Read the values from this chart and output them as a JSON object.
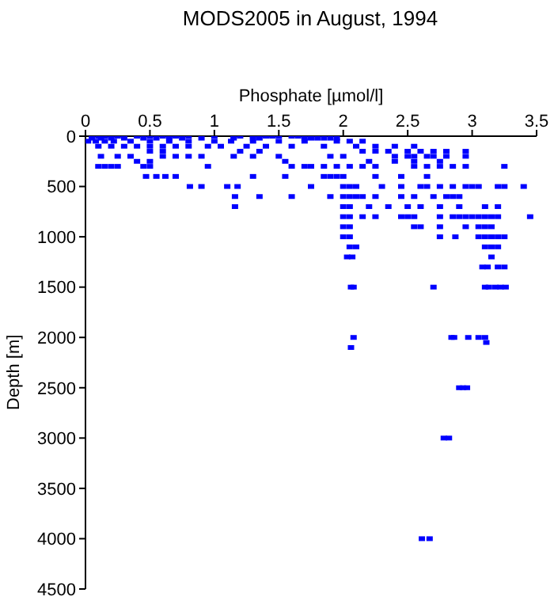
{
  "chart_data": {
    "type": "scatter",
    "title": "MODS2005 in August, 1994",
    "xlabel": "Phosphate [µmol/l]",
    "ylabel": "Depth [m]",
    "xlim": [
      0,
      3.5
    ],
    "xticks": [
      0,
      0.5,
      1,
      1.5,
      2,
      2.5,
      3,
      3.5
    ],
    "ylim": [
      4500,
      0
    ],
    "yticks": [
      0,
      500,
      1000,
      1500,
      2000,
      2500,
      3000,
      3500,
      4000,
      4500
    ],
    "marker": "square",
    "grid": false,
    "legend": false,
    "series": [
      {
        "color": "#0000ff",
        "x": [
          0.05,
          0.1,
          0.15,
          0.2,
          0.25,
          0.3,
          0.4,
          0.5,
          0.6,
          0.7,
          0.8,
          1.0,
          1.15,
          1.2,
          1.3,
          1.4,
          1.45,
          1.5,
          1.6,
          1.65,
          0.05,
          0.12,
          0.2,
          0.3,
          0.45,
          0.55,
          0.65,
          0.75,
          0.9,
          1.15,
          1.3,
          1.35,
          1.7,
          1.75,
          1.8,
          1.85,
          1.9,
          1.95,
          0.02,
          0.08,
          0.15,
          0.22,
          0.35,
          0.5,
          0.65,
          0.8,
          1.0,
          1.13,
          1.3,
          1.5,
          1.7,
          1.95,
          2.05,
          2.15,
          0.1,
          0.2,
          0.3,
          0.4,
          0.5,
          0.6,
          0.7,
          0.8,
          0.95,
          1.05,
          1.25,
          1.4,
          1.6,
          1.85,
          2.1,
          2.25,
          2.4,
          2.55,
          0.5,
          0.6,
          1.2,
          1.35,
          2.15,
          2.25,
          2.35,
          2.5,
          2.6,
          2.7,
          2.8,
          2.95,
          0.12,
          0.25,
          0.35,
          0.6,
          0.7,
          0.8,
          0.9,
          1.15,
          1.3,
          1.5,
          1.9,
          2.0,
          2.4,
          2.5,
          2.55,
          2.65,
          2.7,
          2.8,
          2.95,
          0.4,
          0.5,
          1.55,
          2.2,
          2.4,
          2.55,
          2.75,
          0.1,
          0.15,
          0.2,
          0.25,
          0.45,
          0.5,
          0.95,
          1.6,
          1.7,
          1.75,
          1.85,
          1.95,
          2.05,
          2.15,
          2.25,
          2.55,
          2.65,
          2.75,
          2.85,
          2.95,
          3.25,
          0.47,
          0.55,
          0.62,
          0.7,
          1.3,
          1.55,
          1.85,
          1.9,
          1.95,
          2.0,
          2.25,
          2.45,
          2.65,
          0.81,
          0.9,
          1.1,
          1.18,
          1.75,
          2.0,
          2.05,
          2.1,
          2.3,
          2.45,
          2.6,
          2.65,
          2.75,
          2.85,
          2.95,
          3.0,
          3.05,
          3.2,
          3.25,
          3.4,
          1.16,
          1.35,
          1.6,
          1.9,
          2.0,
          2.05,
          2.1,
          2.15,
          2.25,
          2.45,
          2.55,
          2.7,
          2.8,
          2.85,
          2.9,
          1.16,
          2.0,
          2.05,
          2.2,
          2.35,
          2.5,
          2.6,
          2.75,
          2.9,
          3.1,
          3.2,
          2.0,
          2.05,
          2.15,
          2.25,
          2.45,
          2.5,
          2.55,
          2.75,
          2.85,
          2.9,
          2.95,
          3.0,
          3.05,
          3.1,
          3.15,
          3.2,
          3.45,
          2.0,
          2.05,
          2.55,
          2.6,
          2.75,
          2.95,
          3.05,
          3.1,
          3.15,
          2.0,
          2.05,
          2.75,
          2.87,
          3.05,
          3.1,
          3.15,
          3.2,
          3.25,
          2.05,
          2.1,
          3.1,
          3.15,
          3.2,
          2.03,
          2.07,
          3.15,
          3.08,
          3.12,
          3.2,
          3.25,
          2.06,
          2.08,
          2.7,
          3.1,
          3.13,
          3.18,
          3.22,
          3.26,
          2.08,
          2.84,
          2.86,
          2.97,
          3.05,
          3.1,
          3.11,
          2.06,
          2.9,
          2.93,
          2.96,
          2.78,
          2.82,
          2.61,
          2.67
        ],
        "values": [
          0,
          0,
          0,
          0,
          0,
          0,
          0,
          0,
          0,
          0,
          0,
          0,
          0,
          0,
          0,
          0,
          0,
          0,
          0,
          0,
          20,
          20,
          20,
          20,
          20,
          20,
          20,
          20,
          20,
          20,
          20,
          20,
          20,
          20,
          20,
          20,
          20,
          20,
          50,
          50,
          50,
          50,
          50,
          50,
          50,
          50,
          50,
          50,
          50,
          50,
          50,
          50,
          50,
          50,
          100,
          100,
          100,
          100,
          100,
          100,
          100,
          100,
          100,
          100,
          100,
          100,
          100,
          100,
          100,
          100,
          100,
          100,
          150,
          150,
          150,
          150,
          150,
          150,
          150,
          150,
          150,
          150,
          150,
          150,
          200,
          200,
          200,
          200,
          200,
          200,
          200,
          200,
          200,
          200,
          200,
          200,
          200,
          200,
          200,
          200,
          200,
          200,
          200,
          250,
          250,
          250,
          250,
          250,
          250,
          250,
          300,
          300,
          300,
          300,
          300,
          300,
          300,
          300,
          300,
          300,
          300,
          300,
          300,
          300,
          300,
          300,
          300,
          300,
          300,
          300,
          300,
          400,
          400,
          400,
          400,
          400,
          400,
          400,
          400,
          400,
          400,
          400,
          400,
          400,
          500,
          500,
          500,
          500,
          500,
          500,
          500,
          500,
          500,
          500,
          500,
          500,
          500,
          500,
          500,
          500,
          500,
          500,
          500,
          500,
          600,
          600,
          600,
          600,
          600,
          600,
          600,
          600,
          600,
          600,
          600,
          600,
          600,
          600,
          600,
          700,
          700,
          700,
          700,
          700,
          700,
          700,
          700,
          700,
          700,
          700,
          800,
          800,
          800,
          800,
          800,
          800,
          800,
          800,
          800,
          800,
          800,
          800,
          800,
          800,
          800,
          800,
          800,
          900,
          900,
          900,
          900,
          900,
          900,
          900,
          900,
          900,
          1000,
          1000,
          1000,
          1000,
          1000,
          1000,
          1000,
          1000,
          1000,
          1100,
          1100,
          1100,
          1100,
          1100,
          1200,
          1200,
          1200,
          1300,
          1300,
          1300,
          1300,
          1500,
          1500,
          1500,
          1500,
          1500,
          1500,
          1500,
          1500,
          2000,
          2000,
          2000,
          2000,
          2000,
          2000,
          2050,
          2100,
          2500,
          2500,
          2500,
          3000,
          3000,
          4000,
          4000
        ]
      }
    ]
  }
}
